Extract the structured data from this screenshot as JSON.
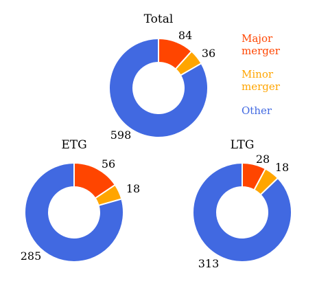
{
  "colors": {
    "major": "#ff4500",
    "minor": "#ffa500",
    "other": "#4169e1",
    "separator": "#ffffff"
  },
  "legend": {
    "major_line1": "Major",
    "major_line2": "merger",
    "minor_line1": "Minor",
    "minor_line2": "merger",
    "other": "Other"
  },
  "chart_data": [
    {
      "type": "pie",
      "title": "Total",
      "categories": [
        "Major merger",
        "Minor merger",
        "Other"
      ],
      "values": [
        84,
        36,
        598
      ]
    },
    {
      "type": "pie",
      "title": "ETG",
      "categories": [
        "Major merger",
        "Minor merger",
        "Other"
      ],
      "values": [
        56,
        18,
        285
      ]
    },
    {
      "type": "pie",
      "title": "LTG",
      "categories": [
        "Major merger",
        "Minor merger",
        "Other"
      ],
      "values": [
        28,
        18,
        313
      ]
    }
  ]
}
